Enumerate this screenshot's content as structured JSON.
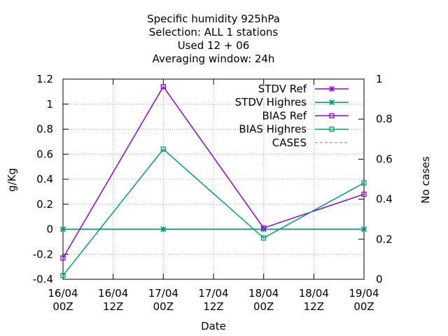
{
  "title_lines": [
    "Specific humidity 925hPa",
    "Selection: ALL       1 stations",
    "Used  12 + 06",
    "Averaging window: 24h"
  ],
  "chart_data": {
    "type": "line",
    "xlabel": "Date",
    "ylabel": "g/Kg",
    "y2label": "No cases",
    "ylim": [
      -0.4,
      1.2
    ],
    "y2lim": [
      0,
      1
    ],
    "yticks": [
      "-0.4",
      "-0.2",
      "0",
      "0.2",
      "0.4",
      "0.6",
      "0.8",
      "1",
      "1.2"
    ],
    "y2ticks": [
      "0",
      "0.2",
      "0.4",
      "0.6",
      "0.8",
      "1"
    ],
    "xticks": [
      [
        "16/04",
        "00Z"
      ],
      [
        "16/04",
        "12Z"
      ],
      [
        "17/04",
        "00Z"
      ],
      [
        "17/04",
        "12Z"
      ],
      [
        "18/04",
        "00Z"
      ],
      [
        "18/04",
        "12Z"
      ],
      [
        "19/04",
        "00Z"
      ]
    ],
    "grid": true,
    "legend_position": "top-right",
    "series": [
      {
        "name": "STDV Ref",
        "x": [
          0,
          2,
          4,
          6
        ],
        "values": [
          0,
          0,
          0,
          0
        ],
        "color": "#9400d3",
        "marker": "cross"
      },
      {
        "name": "STDV Highres",
        "x": [
          0,
          2,
          4,
          6
        ],
        "values": [
          0,
          0,
          0,
          0
        ],
        "color": "#009e73",
        "marker": "cross"
      },
      {
        "name": "BIAS Ref",
        "x": [
          0,
          2,
          4,
          6
        ],
        "values": [
          -0.23,
          1.14,
          0.01,
          0.28
        ],
        "color": "#9400d3",
        "marker": "square"
      },
      {
        "name": "BIAS Highres",
        "x": [
          0,
          2,
          4,
          6
        ],
        "values": [
          -0.37,
          0.64,
          -0.07,
          0.37
        ],
        "color": "#009e73",
        "marker": "square"
      },
      {
        "name": "CASES",
        "x": [],
        "values": [],
        "color": "#808080",
        "marker": "none",
        "dashed": true
      }
    ]
  }
}
